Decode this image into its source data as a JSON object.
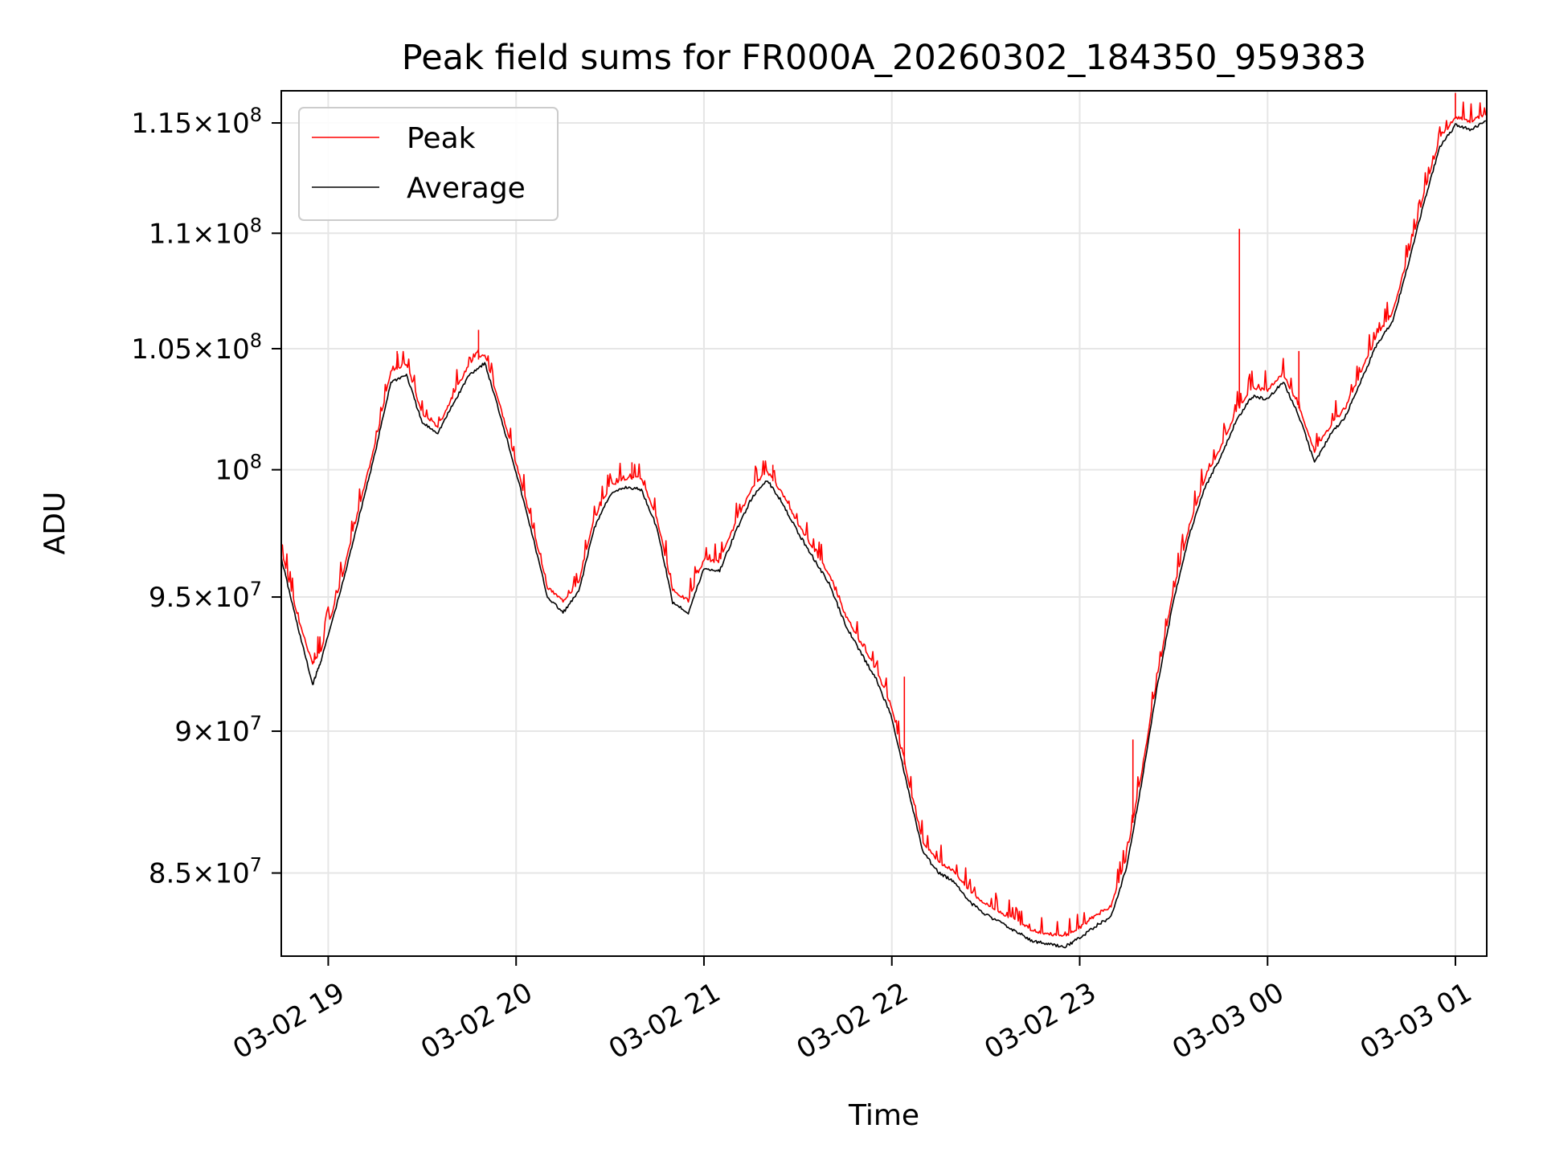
{
  "chart_data": {
    "type": "line",
    "title": "Peak field sums for FR000A_20260302_184350_959383",
    "xlabel": "Time",
    "ylabel": "ADU",
    "x_start": "2026-03-02 18:45",
    "x_end": "2026-03-03 01:10",
    "xlim": [
      "2026-03-02 18:45",
      "2026-03-03 01:10"
    ],
    "ylim": [
      82200000,
      116500000
    ],
    "y_scale": "log",
    "grid": true,
    "legend_position": "top-left",
    "x_ticks": [
      {
        "t": "2026-03-02 19:00",
        "label": "03-02 19"
      },
      {
        "t": "2026-03-02 20:00",
        "label": "03-02 20"
      },
      {
        "t": "2026-03-02 21:00",
        "label": "03-02 21"
      },
      {
        "t": "2026-03-02 22:00",
        "label": "03-02 22"
      },
      {
        "t": "2026-03-02 23:00",
        "label": "03-02 23"
      },
      {
        "t": "2026-03-03 00:00",
        "label": "03-03 00"
      },
      {
        "t": "2026-03-03 01:00",
        "label": "03-03 01"
      }
    ],
    "y_ticks": [
      {
        "v": 85000000,
        "mant": "8.5",
        "exp": "7"
      },
      {
        "v": 90000000,
        "mant": "9",
        "exp": "7"
      },
      {
        "v": 95000000,
        "mant": "9.5",
        "exp": "7"
      },
      {
        "v": 100000000,
        "mant": "",
        "exp": "8"
      },
      {
        "v": 105000000,
        "mant": "1.05",
        "exp": "8"
      },
      {
        "v": 110000000,
        "mant": "1.1",
        "exp": "8"
      },
      {
        "v": 115000000,
        "mant": "1.15",
        "exp": "8"
      }
    ],
    "series": [
      {
        "name": "Peak",
        "color": "#ff0000",
        "points": [
          [
            "2026-03-02 18:45",
            96800000
          ],
          [
            "2026-03-02 18:50",
            94300000
          ],
          [
            "2026-03-02 18:55",
            92400000
          ],
          [
            "2026-03-02 18:58",
            93000000
          ],
          [
            "2026-03-02 19:05",
            96000000
          ],
          [
            "2026-03-02 19:10",
            98500000
          ],
          [
            "2026-03-02 19:15",
            101000000
          ],
          [
            "2026-03-02 19:20",
            104000000
          ],
          [
            "2026-03-02 19:25",
            104300000
          ],
          [
            "2026-03-02 19:30",
            102200000
          ],
          [
            "2026-03-02 19:35",
            101700000
          ],
          [
            "2026-03-02 19:40",
            103000000
          ],
          [
            "2026-03-02 19:45",
            104300000
          ],
          [
            "2026-03-02 19:50",
            104700000
          ],
          [
            "2026-03-02 19:55",
            102500000
          ],
          [
            "2026-03-02 20:00",
            100200000
          ],
          [
            "2026-03-02 20:05",
            97800000
          ],
          [
            "2026-03-02 20:10",
            95300000
          ],
          [
            "2026-03-02 20:15",
            94800000
          ],
          [
            "2026-03-02 20:20",
            95500000
          ],
          [
            "2026-03-02 20:25",
            98000000
          ],
          [
            "2026-03-02 20:30",
            99300000
          ],
          [
            "2026-03-02 20:35",
            99600000
          ],
          [
            "2026-03-02 20:40",
            99600000
          ],
          [
            "2026-03-02 20:45",
            98000000
          ],
          [
            "2026-03-02 20:50",
            95200000
          ],
          [
            "2026-03-02 20:55",
            94800000
          ],
          [
            "2026-03-02 21:00",
            96400000
          ],
          [
            "2026-03-02 21:05",
            96300000
          ],
          [
            "2026-03-02 21:10",
            97800000
          ],
          [
            "2026-03-02 21:15",
            99100000
          ],
          [
            "2026-03-02 21:20",
            99900000
          ],
          [
            "2026-03-02 21:25",
            99000000
          ],
          [
            "2026-03-02 21:30",
            97800000
          ],
          [
            "2026-03-02 21:35",
            96800000
          ],
          [
            "2026-03-02 21:40",
            95800000
          ],
          [
            "2026-03-02 21:45",
            94300000
          ],
          [
            "2026-03-02 21:50",
            93200000
          ],
          [
            "2026-03-02 21:55",
            92200000
          ],
          [
            "2026-03-02 22:00",
            90800000
          ],
          [
            "2026-03-02 22:05",
            88300000
          ],
          [
            "2026-03-02 22:10",
            86000000
          ],
          [
            "2026-03-02 22:15",
            85300000
          ],
          [
            "2026-03-02 22:20",
            85000000
          ],
          [
            "2026-03-02 22:25",
            84300000
          ],
          [
            "2026-03-02 22:30",
            83900000
          ],
          [
            "2026-03-02 22:35",
            83600000
          ],
          [
            "2026-03-02 22:40",
            83300000
          ],
          [
            "2026-03-02 22:45",
            83000000
          ],
          [
            "2026-03-02 22:50",
            82900000
          ],
          [
            "2026-03-02 22:55",
            82800000
          ],
          [
            "2026-03-02 23:00",
            83100000
          ],
          [
            "2026-03-02 23:05",
            83500000
          ],
          [
            "2026-03-02 23:10",
            83800000
          ],
          [
            "2026-03-02 23:15",
            85500000
          ],
          [
            "2026-03-02 23:20",
            88600000
          ],
          [
            "2026-03-02 23:25",
            92100000
          ],
          [
            "2026-03-02 23:30",
            95200000
          ],
          [
            "2026-03-02 23:35",
            97700000
          ],
          [
            "2026-03-02 23:40",
            99600000
          ],
          [
            "2026-03-02 23:45",
            100800000
          ],
          [
            "2026-03-02 23:50",
            102300000
          ],
          [
            "2026-03-02 23:55",
            103300000
          ],
          [
            "2026-03-03 00:00",
            103200000
          ],
          [
            "2026-03-03 00:05",
            103900000
          ],
          [
            "2026-03-03 00:10",
            102500000
          ],
          [
            "2026-03-03 00:15",
            100700000
          ],
          [
            "2026-03-03 00:20",
            101700000
          ],
          [
            "2026-03-03 00:25",
            102500000
          ],
          [
            "2026-03-03 00:30",
            104000000
          ],
          [
            "2026-03-03 00:35",
            105500000
          ],
          [
            "2026-03-03 00:40",
            106500000
          ],
          [
            "2026-03-03 00:45",
            109000000
          ],
          [
            "2026-03-03 00:50",
            111700000
          ],
          [
            "2026-03-03 00:55",
            114200000
          ],
          [
            "2026-03-03 01:00",
            115200000
          ],
          [
            "2026-03-03 01:05",
            115000000
          ],
          [
            "2026-03-03 01:10",
            115400000
          ]
        ],
        "spikes": [
          [
            "2026-03-02 19:22",
            104900000
          ],
          [
            "2026-03-02 19:48",
            105800000
          ],
          [
            "2026-03-02 20:37",
            100300000
          ],
          [
            "2026-03-02 21:22",
            100200000
          ],
          [
            "2026-03-02 22:04",
            92000000
          ],
          [
            "2026-03-02 23:17",
            89700000
          ],
          [
            "2026-03-02 23:51",
            110200000
          ],
          [
            "2026-03-03 00:10",
            104900000
          ],
          [
            "2026-03-03 01:00",
            116400000
          ]
        ]
      },
      {
        "name": "Average",
        "color": "#000000",
        "points": [
          [
            "2026-03-02 18:45",
            96500000
          ],
          [
            "2026-03-02 18:50",
            94000000
          ],
          [
            "2026-03-02 18:55",
            91700000
          ],
          [
            "2026-03-02 18:58",
            92700000
          ],
          [
            "2026-03-02 19:05",
            95700000
          ],
          [
            "2026-03-02 19:10",
            98200000
          ],
          [
            "2026-03-02 19:15",
            100700000
          ],
          [
            "2026-03-02 19:20",
            103600000
          ],
          [
            "2026-03-02 19:25",
            103900000
          ],
          [
            "2026-03-02 19:30",
            101900000
          ],
          [
            "2026-03-02 19:35",
            101500000
          ],
          [
            "2026-03-02 19:40",
            102700000
          ],
          [
            "2026-03-02 19:45",
            103900000
          ],
          [
            "2026-03-02 19:50",
            104400000
          ],
          [
            "2026-03-02 19:55",
            102200000
          ],
          [
            "2026-03-02 20:00",
            99900000
          ],
          [
            "2026-03-02 20:05",
            97500000
          ],
          [
            "2026-03-02 20:10",
            95000000
          ],
          [
            "2026-03-02 20:15",
            94400000
          ],
          [
            "2026-03-02 20:20",
            95200000
          ],
          [
            "2026-03-02 20:25",
            97700000
          ],
          [
            "2026-03-02 20:30",
            99000000
          ],
          [
            "2026-03-02 20:35",
            99300000
          ],
          [
            "2026-03-02 20:40",
            99200000
          ],
          [
            "2026-03-02 20:45",
            97700000
          ],
          [
            "2026-03-02 20:50",
            94800000
          ],
          [
            "2026-03-02 20:55",
            94400000
          ],
          [
            "2026-03-02 21:00",
            96100000
          ],
          [
            "2026-03-02 21:05",
            96000000
          ],
          [
            "2026-03-02 21:10",
            97500000
          ],
          [
            "2026-03-02 21:15",
            98800000
          ],
          [
            "2026-03-02 21:20",
            99600000
          ],
          [
            "2026-03-02 21:25",
            98700000
          ],
          [
            "2026-03-02 21:30",
            97500000
          ],
          [
            "2026-03-02 21:35",
            96500000
          ],
          [
            "2026-03-02 21:40",
            95500000
          ],
          [
            "2026-03-02 21:45",
            94000000
          ],
          [
            "2026-03-02 21:50",
            92900000
          ],
          [
            "2026-03-02 21:55",
            91900000
          ],
          [
            "2026-03-02 22:00",
            90500000
          ],
          [
            "2026-03-02 22:05",
            88000000
          ],
          [
            "2026-03-02 22:10",
            85700000
          ],
          [
            "2026-03-02 22:15",
            85000000
          ],
          [
            "2026-03-02 22:20",
            84700000
          ],
          [
            "2026-03-02 22:25",
            84000000
          ],
          [
            "2026-03-02 22:30",
            83600000
          ],
          [
            "2026-03-02 22:35",
            83300000
          ],
          [
            "2026-03-02 22:40",
            83000000
          ],
          [
            "2026-03-02 22:45",
            82700000
          ],
          [
            "2026-03-02 22:50",
            82600000
          ],
          [
            "2026-03-02 22:55",
            82500000
          ],
          [
            "2026-03-02 23:00",
            82800000
          ],
          [
            "2026-03-02 23:05",
            83200000
          ],
          [
            "2026-03-02 23:10",
            83500000
          ],
          [
            "2026-03-02 23:15",
            85200000
          ],
          [
            "2026-03-02 23:20",
            88300000
          ],
          [
            "2026-03-02 23:25",
            91800000
          ],
          [
            "2026-03-02 23:30",
            94900000
          ],
          [
            "2026-03-02 23:35",
            97400000
          ],
          [
            "2026-03-02 23:40",
            99300000
          ],
          [
            "2026-03-02 23:45",
            100500000
          ],
          [
            "2026-03-02 23:50",
            102000000
          ],
          [
            "2026-03-02 23:55",
            103000000
          ],
          [
            "2026-03-03 00:00",
            102900000
          ],
          [
            "2026-03-03 00:05",
            103600000
          ],
          [
            "2026-03-03 00:10",
            102200000
          ],
          [
            "2026-03-03 00:15",
            100300000
          ],
          [
            "2026-03-03 00:20",
            101400000
          ],
          [
            "2026-03-03 00:25",
            102200000
          ],
          [
            "2026-03-03 00:30",
            103700000
          ],
          [
            "2026-03-03 00:35",
            105200000
          ],
          [
            "2026-03-03 00:40",
            106200000
          ],
          [
            "2026-03-03 00:45",
            108700000
          ],
          [
            "2026-03-03 00:50",
            111400000
          ],
          [
            "2026-03-03 00:55",
            113900000
          ],
          [
            "2026-03-03 01:00",
            114900000
          ],
          [
            "2026-03-03 01:05",
            114700000
          ],
          [
            "2026-03-03 01:10",
            115100000
          ]
        ]
      }
    ]
  }
}
